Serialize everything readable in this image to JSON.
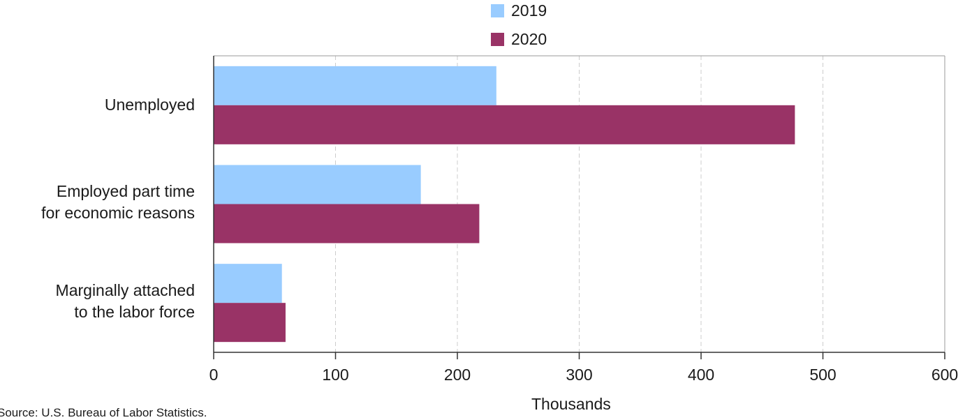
{
  "chart_data": {
    "type": "bar",
    "orientation": "horizontal",
    "categories": [
      "Unemployed",
      "Employed part time for economic reasons",
      "Marginally attached to the labor force"
    ],
    "category_lines": [
      [
        "Unemployed"
      ],
      [
        "Employed part time",
        "for economic reasons"
      ],
      [
        "Marginally attached",
        "to the labor force"
      ]
    ],
    "series": [
      {
        "name": "2019",
        "color": "#99ccff",
        "values": [
          232,
          170,
          56
        ]
      },
      {
        "name": "2020",
        "color": "#993366",
        "values": [
          477,
          218,
          59
        ]
      }
    ],
    "xlabel": "Thousands",
    "xlim": [
      0,
      600
    ],
    "xticks": [
      0,
      100,
      200,
      300,
      400,
      500,
      600
    ],
    "grid": true,
    "legend_position": "top"
  },
  "source": "Source: U.S. Bureau of Labor Statistics."
}
